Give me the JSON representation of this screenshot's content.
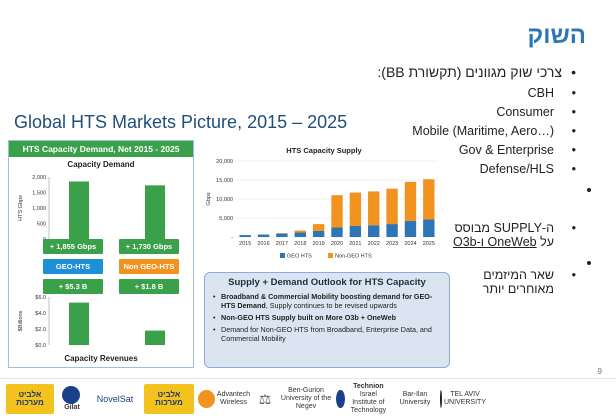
{
  "slide": {
    "title": "השוק",
    "page_number": "9"
  },
  "bullets": {
    "main": "צרכי שוק מגוונים (תקשורת BB):",
    "sub": [
      "CBH",
      "Consumer",
      "Mobile (Maritime, Aero…)",
      "Gov & Enterprise",
      "Defense/HLS"
    ],
    "supply_line1": "ה-SUPPLY מבוסס",
    "supply_line2_pre": "על ",
    "supply_link": "OneWeb ו-O3b",
    "players_line1": "שאר המיזמים",
    "players_line2": "מאוחרים יותר"
  },
  "hts_title": "Global HTS Markets Picture, 2015 – 2025",
  "left_panel": {
    "header": "HTS Capacity Demand, Net 2015 - 2025",
    "demand_title": "Capacity Demand",
    "demand_ylabel": "HTS Gbps",
    "demand_pill_1": "+ 1,855 Gbps",
    "demand_pill_2": "+ 1,730 Gbps",
    "geo_label": "GEO-HTS",
    "nongeo_label": "Non GEO-HTS",
    "rev_pill_1": "+ $5.3 B",
    "rev_pill_2": "+ $1.8 B",
    "rev_ylabel": "$Billions",
    "revenue_title": "Capacity Revenues",
    "colors": {
      "green": "#3aa04a",
      "blue": "#1e90d8",
      "orange": "#f2931f"
    }
  },
  "chart_data": [
    {
      "type": "bar",
      "title": "Capacity Demand",
      "ylabel": "HTS Gbps",
      "categories": [
        "GEO-HTS",
        "Non GEO-HTS"
      ],
      "values": [
        1855,
        1730
      ],
      "ylim": [
        0,
        2000
      ],
      "yticks": [
        "0",
        "500",
        "1,000",
        "1,500",
        "2,000"
      ]
    },
    {
      "type": "bar",
      "title": "Capacity Revenues",
      "ylabel": "$Billions",
      "categories": [
        "GEO-HTS",
        "Non GEO-HTS"
      ],
      "values": [
        5.3,
        1.8
      ],
      "ylim": [
        0,
        6
      ],
      "yticks": [
        "$0.0",
        "$2.0",
        "$4.0",
        "$6.0"
      ]
    },
    {
      "type": "bar",
      "stacked": true,
      "title": "HTS Capacity Supply",
      "ylabel": "Gbps",
      "categories": [
        "2015",
        "2016",
        "2017",
        "2018",
        "2019",
        "2020",
        "2021",
        "2022",
        "2023",
        "2024",
        "2025"
      ],
      "series": [
        {
          "name": "GEO HTS",
          "color": "#2e75b6",
          "values": [
            500,
            650,
            900,
            1200,
            1600,
            2500,
            2900,
            3100,
            3400,
            4200,
            4600
          ]
        },
        {
          "name": "Non-GEO HTS",
          "color": "#f2931f",
          "values": [
            0,
            0,
            100,
            500,
            1800,
            8500,
            8800,
            8900,
            9300,
            10300,
            10600
          ]
        }
      ],
      "ylim": [
        0,
        20000
      ],
      "yticks": [
        "-",
        "5,000",
        "10,000",
        "15,000",
        "20,000"
      ],
      "legend": "bottom"
    }
  ],
  "outlook": {
    "title": "Supply + Demand Outlook for HTS Capacity",
    "items": [
      {
        "bold": "Broadband & Commercial Mobility boosting demand for GEO-HTS Demand",
        "rest": ", Supply continues to be revised upwards"
      },
      {
        "bold": "Non-GEO HTS Supply built on More O3b + OneWeb",
        "rest": ""
      },
      {
        "bold": "",
        "rest": "Demand for Non-GEO HTS from Broadband, Enterprise Data, and Commercial Mobility"
      }
    ]
  },
  "logos": {
    "elbit1": "אלביט מערכות",
    "gilat": "Gilat",
    "novelsat": "NovelSat",
    "elbit2": "אלביט מערכות",
    "advantech": "Advantech",
    "advantech_sub": "Wireless",
    "bgu": "Ben-Gurion University of the Negev",
    "technion": "Technion",
    "technion_sub": "Israel Institute of Technology",
    "barilan": "Bar-Ilan University",
    "tau": "TEL AVIV UNIVERSITY"
  }
}
